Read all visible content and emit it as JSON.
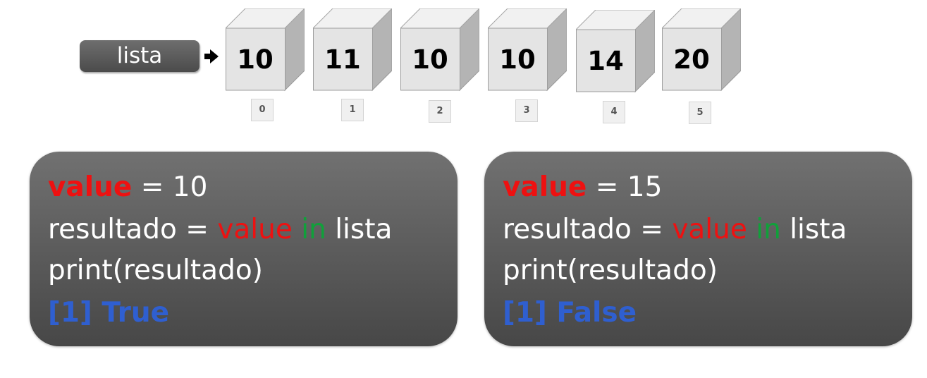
{
  "list": {
    "label": "lista",
    "items": [
      {
        "value": "10",
        "index": "0"
      },
      {
        "value": "11",
        "index": "1"
      },
      {
        "value": "10",
        "index": "2"
      },
      {
        "value": "10",
        "index": "3"
      },
      {
        "value": "14",
        "index": "4"
      },
      {
        "value": "20",
        "index": "5"
      }
    ]
  },
  "panels": [
    {
      "line1": {
        "var": "value",
        "rest": " = 10"
      },
      "line2": {
        "lhs": "resultado = ",
        "var": "value",
        "sp1": " ",
        "op": "in",
        "rest": " lista"
      },
      "line3": "print(resultado)",
      "line4": "[1] True"
    },
    {
      "line1": {
        "var": "value",
        "rest": " = 15"
      },
      "line2": {
        "lhs": "resultado = ",
        "var": "value",
        "sp1": " ",
        "op": "in",
        "rest": " lista"
      },
      "line3": "print(resultado)",
      "line4": "[1] False"
    }
  ],
  "colors": {
    "keyword_value": "#ee1111",
    "keyword_in": "#10a03a",
    "output": "#2f5fd0",
    "panel": "#5a5a5a",
    "cube_face": "#e4e4e4"
  }
}
